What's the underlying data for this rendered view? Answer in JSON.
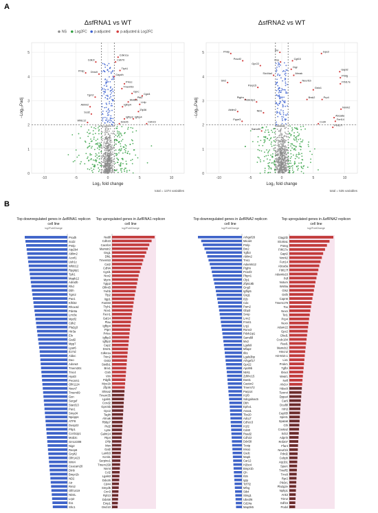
{
  "figure": {
    "panel_a_letter": "A",
    "panel_b_letter": "B"
  },
  "colors": {
    "ns": "#8c8c8c",
    "log2fc": "#2e9e3e",
    "padj": "#3a5fd0",
    "padj_log2fc": "#d33a3a",
    "down_bar": "#3e63c9",
    "up_bar": "#c23a3a",
    "up_bar_dark": "#6b2b2b",
    "grid": "#e6e6e6"
  },
  "chart_data": [
    {
      "type": "scatter",
      "title": "ΔsfRNA1 vs WT",
      "xlabel": "Log₂ fold change",
      "ylabel": "−Log₁₀Padj",
      "xlim": [
        -12,
        12
      ],
      "ylim": [
        0,
        5.4
      ],
      "xticks": [
        "-10",
        "-5",
        "0",
        "5",
        "10"
      ],
      "yticks": [
        "0",
        "1",
        "2",
        "3",
        "4",
        "5"
      ],
      "legend": [
        "NS",
        "Log2FC",
        "p-adjusted",
        "p-adjusted & Log2FC"
      ],
      "caption": "total = 1374 variables",
      "thresholds": {
        "x": [
          -1,
          1
        ],
        "y": 2
      },
      "genes": [
        {
          "label": "Pmlp",
          "x": -3.5,
          "y": 4.15
        },
        {
          "label": "Cdk2l",
          "x": -1.9,
          "y": 4.6
        },
        {
          "label": "Dhrs9",
          "x": -1.4,
          "y": 4.1
        },
        {
          "label": "Tgm2",
          "x": -2.0,
          "y": 3.15
        },
        {
          "label": "Ablim2",
          "x": -2.8,
          "y": 2.75
        },
        {
          "label": "Scd2",
          "x": -2.6,
          "y": 2.45
        },
        {
          "label": "Wfdc12",
          "x": -3.2,
          "y": 2.1
        },
        {
          "label": "Cdkn1a",
          "x": 1.6,
          "y": 4.8
        },
        {
          "label": "Cdh70",
          "x": 1.2,
          "y": 4.6
        },
        {
          "label": "Ttyh1",
          "x": 1.9,
          "y": 4.25
        },
        {
          "label": "Gapdh",
          "x": 1.0,
          "y": 4.0
        },
        {
          "label": "Prkcc",
          "x": 2.6,
          "y": 3.7
        },
        {
          "label": "Tmem53",
          "x": 2.2,
          "y": 3.5
        },
        {
          "label": "Cgsl1",
          "x": 5.4,
          "y": 3.2
        },
        {
          "label": "Gprc",
          "x": 3.8,
          "y": 3.3
        },
        {
          "label": "Ptd2",
          "x": 4.4,
          "y": 3.05
        },
        {
          "label": "Lhfp",
          "x": 5.0,
          "y": 2.85
        },
        {
          "label": "Stx6b1",
          "x": 3.2,
          "y": 2.95
        },
        {
          "label": "Igfbp4",
          "x": 2.3,
          "y": 2.75
        },
        {
          "label": "Zfp36",
          "x": 4.8,
          "y": 2.55
        },
        {
          "label": "Igfbp3",
          "x": 2.6,
          "y": 2.25
        },
        {
          "label": "Ddx26",
          "x": 1.8,
          "y": 2.05
        },
        {
          "label": "Cdh23",
          "x": 6.1,
          "y": 2.05
        },
        {
          "label": "Igfbp4",
          "x": 4.0,
          "y": 2.25
        }
      ]
    },
    {
      "type": "scatter",
      "title": "ΔsfRNA2 vs WT",
      "xlabel": "Log₂ fold change",
      "ylabel": "−Log₁₀Padj",
      "xlim": [
        -12,
        12
      ],
      "ylim": [
        0,
        5.4
      ],
      "xticks": [
        "-10",
        "-5",
        "0",
        "5",
        "10"
      ],
      "yticks": [
        "0",
        "1",
        "2",
        "3",
        "4",
        "5"
      ],
      "caption": "total = 535 variables",
      "thresholds": {
        "x": [
          -1,
          1
        ],
        "y": 2
      },
      "genes": [
        {
          "label": "Pmlp",
          "x": -8.1,
          "y": 4.95
        },
        {
          "label": "Pcsvf2",
          "x": -6.2,
          "y": 4.65
        },
        {
          "label": "Gpr22",
          "x": -3.4,
          "y": 4.45
        },
        {
          "label": "Slc44a4",
          "x": -1.3,
          "y": 4.05
        },
        {
          "label": "Sln2",
          "x": -8.6,
          "y": 3.75
        },
        {
          "label": "Parp15",
          "x": -3.8,
          "y": 3.55
        },
        {
          "label": "Ptgfrn",
          "x": -5.8,
          "y": 3.05
        },
        {
          "label": "Pdzk1ip1",
          "x": -4.0,
          "y": 2.95
        },
        {
          "label": "Ablim2",
          "x": -7.0,
          "y": 2.55
        },
        {
          "label": "Pppe3",
          "x": -6.3,
          "y": 2.15
        },
        {
          "label": "Nbl1",
          "x": -2.9,
          "y": 2.5
        },
        {
          "label": "Fkr",
          "x": -0.3,
          "y": 5.0
        },
        {
          "label": "Cnp",
          "x": -0.2,
          "y": 4.6
        },
        {
          "label": "Gpc2",
          "x": 6.3,
          "y": 4.95
        },
        {
          "label": "Cgf15",
          "x": 1.7,
          "y": 4.65
        },
        {
          "label": "Ctgl",
          "x": 1.5,
          "y": 4.3
        },
        {
          "label": "Ahnak",
          "x": 1.9,
          "y": 4.05
        },
        {
          "label": "Neurl1b",
          "x": 3.0,
          "y": 3.75
        },
        {
          "label": "Gsto1",
          "x": 5.0,
          "y": 3.45
        },
        {
          "label": "Gapt2",
          "x": 9.2,
          "y": 4.2
        },
        {
          "label": "Pmtg",
          "x": 9.3,
          "y": 3.95
        },
        {
          "label": "Fthl17e",
          "x": 9.3,
          "y": 3.7
        },
        {
          "label": "Prp4",
          "x": 6.4,
          "y": 3.05
        },
        {
          "label": "Brsk2",
          "x": 4.0,
          "y": 3.05
        },
        {
          "label": "Nmrk2",
          "x": 9.4,
          "y": 2.65
        },
        {
          "label": "Abca8a",
          "x": 8.3,
          "y": 2.3
        },
        {
          "label": "Fert14",
          "x": 8.5,
          "y": 2.15
        },
        {
          "label": "Ccd9",
          "x": 5.8,
          "y": 2.05
        },
        {
          "label": "Fthl17f",
          "x": 8.1,
          "y": 1.9
        },
        {
          "label": "Samd9l",
          "x": -3.2,
          "y": 1.75
        }
      ]
    },
    {
      "type": "bar",
      "title": "Top downregulated genes in ΔsfRNA1 replicon cell line",
      "xlabel": "log2FoldChange",
      "categories": [
        "Prodh",
        "Scd2",
        "Pmlp",
        "Atp2b4",
        "Ablim2",
        "Acvrl1",
        "Ush1c",
        "Wfdc12",
        "Rpgrip1",
        "Tph1",
        "Mapk12",
        "Adra2b",
        "Rhd",
        "Dbh",
        "Tgm2",
        "Pax1",
        "Klhl32",
        "Rhox4d",
        "Pde9a",
        "Lrrc8e",
        "Mpzl2",
        "Cdk2",
        "Pla2g3",
        "Htr3a",
        "Eln",
        "Gad2",
        "Mpp7",
        "Lpar6",
        "Il17rd",
        "Aldoc",
        "Dao",
        "Adora3",
        "Tmem30c",
        "Tmc4",
        "Hyal3",
        "Pecam1",
        "Olfr1124",
        "Nsun7",
        "Tmem69",
        "Gsn",
        "Sergef",
        "Stard13",
        "Pax1",
        "Smyd4",
        "Npepps",
        "ATP8",
        "Dusp22",
        "Pbp1",
        "Ccnb1ip1",
        "Mob3c",
        "Gm14308",
        "Nig2",
        "Reep6",
        "Gxylt2",
        "Olfr1423",
        "Wnt4",
        "Ceacam20",
        "Dtnb",
        "Bmpr1b",
        "ND2",
        "Atr",
        "Rmi2",
        "Olfr1419",
        "ND4L",
        "Lrp2",
        "Il11",
        "Shc1"
      ],
      "values": [
        -2.46,
        -2.42,
        -2.38,
        -2.35,
        -2.32,
        -2.29,
        -2.26,
        -2.23,
        -2.2,
        -2.17,
        -2.14,
        -2.11,
        -2.08,
        -2.05,
        -2.02,
        -1.99,
        -1.96,
        -1.93,
        -1.9,
        -1.87,
        -1.84,
        -1.81,
        -1.78,
        -1.75,
        -1.72,
        -1.69,
        -1.66,
        -1.63,
        -1.6,
        -1.58,
        -1.56,
        -1.54,
        -1.52,
        -1.5,
        -1.48,
        -1.46,
        -1.44,
        -1.42,
        -1.4,
        -1.38,
        -1.36,
        -1.34,
        -1.32,
        -1.3,
        -1.28,
        -1.26,
        -1.24,
        -1.22,
        -1.2,
        -1.18,
        -1.16,
        -1.14,
        -1.12,
        -1.1,
        -1.08,
        -1.06,
        -1.04,
        -1.02,
        -1.0,
        -0.98,
        -0.96,
        -0.94,
        -0.92,
        -0.9,
        -0.88,
        -0.86,
        -0.84
      ]
    },
    {
      "type": "bar",
      "title": "Top upregulated genes in ΔsfRNA1 replicon cell line",
      "xlabel": "log2FoldChange",
      "categories": [
        "Nat8l",
        "Cdh23",
        "Cacnb4",
        "Mamstr2",
        "Gsg1",
        "Dlk1",
        "Tmem53",
        "Cat2",
        "Cdhl4",
        "Cgsl1",
        "Nox2",
        "Myrin",
        "Tgtp2",
        "Olfml3",
        "Ywhb",
        "Tfp2",
        "Iigp1",
        "Fam83",
        "Ttyh1",
        "Nox1",
        "Fscn1",
        "Gal14",
        "Plau",
        "Igfbp4",
        "Ptprr",
        "Prkcc",
        "Igfbp3",
        "Igfbp2",
        "Cap2",
        "Dmrt1",
        "Cdkn1a",
        "Trim2",
        "Gsk3",
        "Stx6b1",
        "Brix1",
        "Ctsh",
        "Vim",
        "Pdgfb",
        "Myo1b",
        "Zfp36",
        "Shisa2",
        "Tmem35",
        "Lgals1",
        "Ccnd2",
        "Gprc5b",
        "Gpc2",
        "Tagln",
        "Ahnak",
        "Rbbp7",
        "Ptd2",
        "Ly6e",
        "Galnt14",
        "Rtp4",
        "Lhfp",
        "Msn",
        "Gal2",
        "Lamb3",
        "Kcnk1",
        "Serpine1",
        "Tmem158",
        "Nnmt",
        "Ccl2",
        "Lgals3",
        "Ddx26",
        "Cd44",
        "Smyd5",
        "Cnn3",
        "Rpl13",
        "Ddx58",
        "Emp1",
        "Dscl10"
      ],
      "values": [
        5.6,
        5.2,
        4.9,
        4.7,
        4.5,
        4.3,
        4.1,
        3.95,
        3.8,
        3.65,
        3.5,
        3.4,
        3.3,
        3.2,
        3.1,
        3.0,
        2.92,
        2.84,
        2.76,
        2.68,
        2.6,
        2.54,
        2.48,
        2.42,
        2.36,
        2.3,
        2.25,
        2.2,
        2.15,
        2.1,
        2.05,
        2.0,
        1.96,
        1.92,
        1.88,
        1.84,
        1.8,
        1.76,
        1.72,
        1.68,
        1.64,
        1.6,
        1.57,
        1.54,
        1.51,
        1.48,
        1.45,
        1.42,
        1.39,
        1.36,
        1.33,
        1.3,
        1.27,
        1.24,
        1.21,
        1.18,
        1.15,
        1.12,
        1.09,
        1.06,
        1.03,
        1.0,
        0.97,
        0.94,
        0.91,
        0.88,
        0.85,
        0.82,
        0.79,
        0.76,
        0.73
      ]
    },
    {
      "type": "bar",
      "title": "Top downregulated genes in ΔsfRNA2 replicon cell line",
      "xlabel": "log2FoldChange",
      "categories": [
        "Arhgef28",
        "Mical4",
        "Pmlp",
        "Bm2",
        "Tgfb3",
        "Ablim2",
        "Tns1",
        "Adamts12",
        "Ptgfrn",
        "Pcsvf2",
        "Pbpn1",
        "Cfp1",
        "Zfp518b",
        "Gng3",
        "Igfbp5",
        "Gsg1",
        "Il1b",
        "Cdx",
        "Pam2",
        "Gbp3",
        "Svop",
        "Lrrn2",
        "Fmnl1",
        "Lrg1",
        "Runx3",
        "Pdzk1ip1",
        "Samd9l",
        "Mx2",
        "Lgals9",
        "Mfap2",
        "Ifit1",
        "Lgals3bp",
        "Arhgef17",
        "Gpr22",
        "Apol9b",
        "Ntrk1",
        "Zdhhc15",
        "Dast1",
        "Castor2",
        "Tmem72",
        "Parp14",
        "H1f0",
        "Sdcgalnac5",
        "Dbh",
        "Ephx1",
        "Anxa1",
        "Tbx20",
        "Adcy7",
        "Cdhzc3",
        "H1f2",
        "Cd40",
        "Rsad2",
        "Cdh22",
        "Ddx58",
        "Txnip",
        "Inka1",
        "Gsdc",
        "Mapk",
        "Car12",
        "H2bc4",
        "Bmpr1b",
        "Gh",
        "Il15",
        "Igtp",
        "Tcf7l2",
        "Mfng",
        "Stk4",
        "Sting1",
        "Ube2l6",
        "Cd24a",
        "Map3k5"
      ],
      "values": [
        -5.4,
        -5.0,
        -4.8,
        -4.6,
        -4.4,
        -4.25,
        -4.1,
        -3.95,
        -3.82,
        -3.7,
        -3.6,
        -3.5,
        -3.4,
        -3.3,
        -3.2,
        -3.12,
        -3.04,
        -2.96,
        -2.88,
        -2.8,
        -2.73,
        -2.66,
        -2.59,
        -2.52,
        -2.46,
        -2.4,
        -2.34,
        -2.28,
        -2.22,
        -2.16,
        -2.11,
        -2.06,
        -2.01,
        -1.96,
        -1.91,
        -1.86,
        -1.82,
        -1.78,
        -1.74,
        -1.7,
        -1.66,
        -1.62,
        -1.58,
        -1.54,
        -1.5,
        -1.47,
        -1.44,
        -1.41,
        -1.38,
        -1.35,
        -1.32,
        -1.29,
        -1.26,
        -1.23,
        -1.2,
        -1.17,
        -1.14,
        -1.11,
        -1.08,
        -1.05,
        -1.02,
        -0.99,
        -0.96,
        -0.93,
        -0.9,
        -0.87,
        -0.84,
        -0.81,
        -0.78,
        -0.75,
        -0.72
      ]
    },
    {
      "type": "bar",
      "title": "Top upregulated genes in ΔsfRNA2 replicon cell line",
      "xlabel": "log2FoldChange",
      "categories": [
        "Ctag2l2",
        "Slc40a1",
        "Poteg",
        "Fthl17e",
        "Gapt2",
        "Nmrk2",
        "Fert14",
        "Abca8a",
        "Fthl17f",
        "Adamts16",
        "Pdf",
        "Notum",
        "Wnt9a",
        "Gls2",
        "Gsf0",
        "Capn6",
        "Tmem179",
        "Tox",
        "Nexn",
        "Tet1",
        "Pcp4",
        "Nexn",
        "Adam22",
        "Gpc2",
        "Gfod1",
        "Ccdc184",
        "Rasl1",
        "Mamdc2",
        "Hmcn2",
        "H2-M10.1",
        "Lix1",
        "Prokr1",
        "Tgfbr",
        "Ibsx4",
        "Wwtr1",
        "Nefl",
        "Alx2cr",
        "Hdac9",
        "Tenm4",
        "Dppa4",
        "Car6",
        "Dcaf8l",
        "Hrh3",
        "Cep85l",
        "Spint1",
        "Spata6",
        "Cth",
        "Cox6a2",
        "Sdc2",
        "Adprl4",
        "Rnf207",
        "Ffar4",
        "Neurl1b",
        "Pdrd2",
        "Cebpb",
        "Atp1b1",
        "Sparc",
        "Tmeff2",
        "Tmc8",
        "Rpr2",
        "Pik3r1",
        "Pla2g2e",
        "Nphp1",
        "Ank3",
        "Trim2",
        "Gdf15",
        "Podxl"
      ],
      "values": [
        6.9,
        6.3,
        5.9,
        5.6,
        5.3,
        5.1,
        4.9,
        4.7,
        4.55,
        4.4,
        4.25,
        4.1,
        3.98,
        3.86,
        3.74,
        3.62,
        3.5,
        3.4,
        3.3,
        3.2,
        3.1,
        3.02,
        2.94,
        2.86,
        2.78,
        2.7,
        2.63,
        2.56,
        2.49,
        2.42,
        2.36,
        2.3,
        2.24,
        2.18,
        2.12,
        2.06,
        2.01,
        1.96,
        1.91,
        1.86,
        1.81,
        1.76,
        1.72,
        1.68,
        1.64,
        1.6,
        1.56,
        1.52,
        1.48,
        1.44,
        1.4,
        1.36,
        1.33,
        1.3,
        1.27,
        1.24,
        1.21,
        1.18,
        1.15,
        1.12,
        1.09,
        1.06,
        1.03,
        1.0,
        0.97,
        0.94,
        0.91
      ]
    }
  ]
}
